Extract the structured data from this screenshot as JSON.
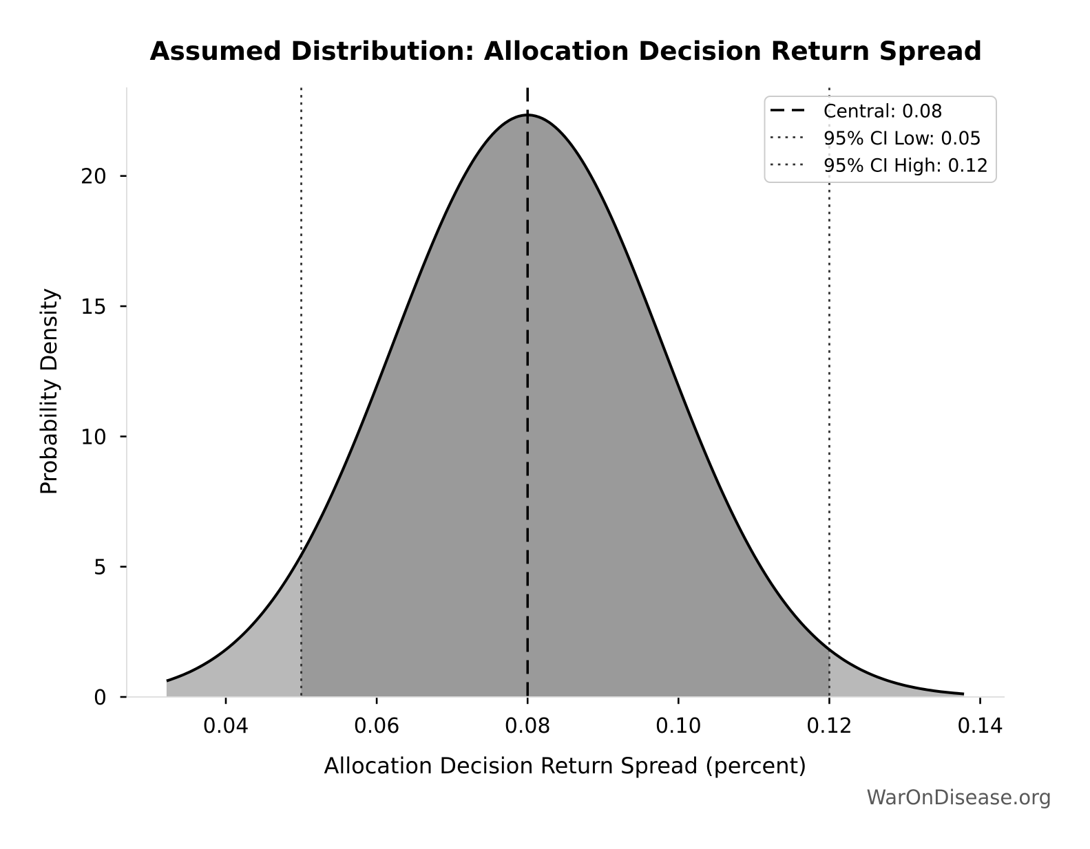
{
  "chart_data": {
    "type": "area",
    "title": "Assumed Distribution: Allocation Decision Return Spread",
    "xlabel": "Allocation Decision Return Spread (percent)",
    "ylabel": "Probability Density",
    "watermark": "WarOnDisease.org",
    "distribution": {
      "kind": "normal",
      "mean": 0.08,
      "sigma": 0.0178571,
      "peak_density": 22.3408,
      "central": 0.08,
      "ci_low": 0.05,
      "ci_high": 0.12,
      "x_plot_min": 0.0321429,
      "x_plot_max": 0.1378571
    },
    "xlim": [
      0.0268571,
      0.1431429
    ],
    "ylim": [
      0,
      23.4
    ],
    "x_ticks": [
      0.04,
      0.06,
      0.08,
      0.1,
      0.12,
      0.14
    ],
    "x_tick_labels": [
      "0.04",
      "0.06",
      "0.08",
      "0.10",
      "0.12",
      "0.14"
    ],
    "y_ticks": [
      0,
      5,
      10,
      15,
      20
    ],
    "y_tick_labels": [
      "0",
      "5",
      "10",
      "15",
      "20"
    ],
    "grid": false,
    "legend_position": "upper right",
    "legend": [
      {
        "label": "Central: 0.08",
        "style": "dashed",
        "color": "#000000"
      },
      {
        "label": "95% CI Low: 0.05",
        "style": "dotted",
        "color": "#333333"
      },
      {
        "label": "95% CI High: 0.12",
        "style": "dotted",
        "color": "#333333"
      }
    ],
    "colors": {
      "curve": "#000000",
      "fill_tail": "#b9b9b9",
      "fill_ci": "#9a9a9a",
      "spine": "#dcdcdc",
      "tick": "#000000",
      "text": "#000000",
      "watermark": "#595959",
      "ci_line": "#333333",
      "central_line": "#000000",
      "legend_border": "#cccccc"
    },
    "points": [
      [
        0.032143,
        0.6158
      ],
      [
        0.034031,
        0.813
      ],
      [
        0.035918,
        1.0613
      ],
      [
        0.037806,
        1.3701
      ],
      [
        0.039694,
        1.749
      ],
      [
        0.041582,
        2.208
      ],
      [
        0.043469,
        2.7564
      ],
      [
        0.045357,
        3.4028
      ],
      [
        0.047245,
        4.1542
      ],
      [
        0.049133,
        5.015
      ],
      [
        0.05102,
        5.9869
      ],
      [
        0.052908,
        7.0678
      ],
      [
        0.054796,
        8.2511
      ],
      [
        0.056684,
        9.5255
      ],
      [
        0.058571,
        10.8744
      ],
      [
        0.060459,
        12.2765
      ],
      [
        0.062347,
        13.7052
      ],
      [
        0.064235,
        15.1303
      ],
      [
        0.066122,
        16.5178
      ],
      [
        0.06801,
        17.8322
      ],
      [
        0.069898,
        19.0373
      ],
      [
        0.071786,
        20.0979
      ],
      [
        0.073673,
        20.9818
      ],
      [
        0.075561,
        21.6612
      ],
      [
        0.077449,
        22.114
      ],
      [
        0.079337,
        22.3254
      ],
      [
        0.081224,
        22.2884
      ],
      [
        0.083112,
        22.0041
      ],
      [
        0.085,
        21.482
      ],
      [
        0.086888,
        20.7392
      ],
      [
        0.088776,
        19.7996
      ],
      [
        0.090663,
        18.6926
      ],
      [
        0.092551,
        17.4512
      ],
      [
        0.094439,
        16.1113
      ],
      [
        0.096327,
        14.7089
      ],
      [
        0.098214,
        13.2794
      ],
      [
        0.100102,
        11.8556
      ],
      [
        0.10199,
        10.4668
      ],
      [
        0.103878,
        9.138
      ],
      [
        0.105765,
        7.8892
      ],
      [
        0.107653,
        6.7354
      ],
      [
        0.109541,
        5.6864
      ],
      [
        0.111429,
        4.7475
      ],
      [
        0.113316,
        3.9195
      ],
      [
        0.115204,
        3.2
      ],
      [
        0.117092,
        2.5835
      ],
      [
        0.11898,
        2.0626
      ],
      [
        0.120867,
        1.6284
      ],
      [
        0.122755,
        1.2714
      ],
      [
        0.124643,
        0.9816
      ],
      [
        0.126531,
        0.7494
      ],
      [
        0.128418,
        0.5658
      ],
      [
        0.130306,
        0.4224
      ],
      [
        0.132194,
        0.3119
      ],
      [
        0.134082,
        0.2277
      ],
      [
        0.135969,
        0.1644
      ],
      [
        0.137857,
        0.1174
      ]
    ]
  }
}
